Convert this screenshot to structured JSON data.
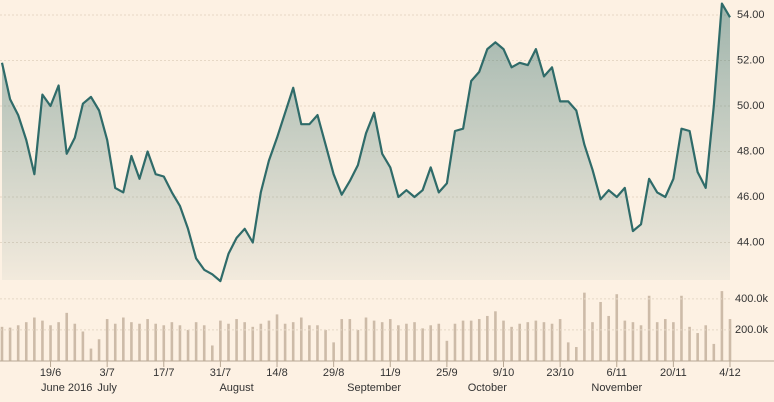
{
  "chart_data": [
    {
      "type": "line",
      "color": "#2f6b69",
      "grid": true,
      "categories": [
        null,
        null,
        null,
        null,
        null,
        null,
        "19/6",
        null,
        null,
        null,
        null,
        null,
        null,
        "3/7",
        null,
        null,
        null,
        null,
        null,
        null,
        "17/7",
        null,
        null,
        null,
        null,
        null,
        null,
        "31/7",
        null,
        null,
        null,
        null,
        null,
        null,
        "14/8",
        null,
        null,
        null,
        null,
        null,
        null,
        "29/8",
        null,
        null,
        null,
        null,
        null,
        null,
        "11/9",
        null,
        null,
        null,
        null,
        null,
        null,
        "25/9",
        null,
        null,
        null,
        null,
        null,
        null,
        "9/10",
        null,
        null,
        null,
        null,
        null,
        null,
        "23/10",
        null,
        null,
        null,
        null,
        null,
        null,
        "6/11",
        null,
        null,
        null,
        null,
        null,
        null,
        "20/11",
        null,
        null,
        null,
        null,
        null,
        null,
        "4/12"
      ],
      "months": [
        null,
        null,
        null,
        null,
        null,
        null,
        null,
        null,
        "June 2016",
        null,
        null,
        null,
        null,
        "July",
        null,
        null,
        null,
        null,
        null,
        null,
        null,
        null,
        null,
        null,
        null,
        null,
        null,
        null,
        null,
        "August",
        null,
        null,
        null,
        null,
        null,
        null,
        null,
        null,
        null,
        null,
        null,
        null,
        null,
        null,
        null,
        null,
        "September",
        null,
        null,
        null,
        null,
        null,
        null,
        null,
        null,
        null,
        null,
        null,
        null,
        null,
        "October",
        null,
        null,
        null,
        null,
        null,
        null,
        null,
        null,
        null,
        null,
        null,
        null,
        null,
        null,
        null,
        "November",
        null,
        null,
        null,
        null,
        null,
        null,
        null,
        null,
        null,
        null,
        null,
        null,
        null,
        null
      ],
      "values": [
        51.9,
        50.3,
        49.6,
        48.5,
        47.0,
        50.5,
        50.0,
        50.9,
        47.9,
        48.6,
        50.1,
        50.4,
        49.8,
        48.5,
        46.4,
        46.2,
        47.8,
        46.8,
        48.0,
        47.0,
        46.9,
        46.2,
        45.6,
        44.6,
        43.3,
        42.8,
        42.6,
        42.3,
        43.5,
        44.2,
        44.6,
        44.0,
        46.2,
        47.6,
        48.6,
        49.7,
        50.8,
        49.2,
        49.2,
        49.6,
        48.3,
        47.0,
        46.1,
        46.7,
        47.4,
        48.8,
        49.7,
        47.9,
        47.3,
        46.0,
        46.3,
        46.0,
        46.3,
        47.3,
        46.2,
        46.6,
        48.9,
        49.0,
        51.1,
        51.5,
        52.5,
        52.8,
        52.5,
        51.7,
        51.9,
        51.8,
        52.5,
        51.3,
        51.7,
        50.2,
        50.2,
        49.8,
        48.3,
        47.2,
        45.9,
        46.3,
        46.0,
        46.4,
        44.5,
        44.8,
        46.8,
        46.2,
        46.0,
        46.8,
        49.0,
        48.9,
        47.1,
        46.4,
        50.0,
        54.5,
        53.9
      ],
      "ylim": [
        42.35,
        54.66
      ],
      "yticks": [
        {
          "value": 44,
          "label": "44.00"
        },
        {
          "value": 46,
          "label": "46.00"
        },
        {
          "value": 48,
          "label": "48.00"
        },
        {
          "value": 50,
          "label": "50.00"
        },
        {
          "value": 52,
          "label": "52.00"
        },
        {
          "value": 54,
          "label": "54.00"
        }
      ]
    },
    {
      "type": "bar",
      "color": "#cdbba8",
      "values": [
        220000,
        215000,
        230000,
        250000,
        280000,
        260000,
        230000,
        250000,
        310000,
        240000,
        190000,
        80000,
        140000,
        270000,
        240000,
        280000,
        250000,
        240000,
        270000,
        240000,
        230000,
        250000,
        230000,
        200000,
        250000,
        230000,
        100000,
        260000,
        240000,
        270000,
        250000,
        220000,
        240000,
        260000,
        300000,
        240000,
        250000,
        280000,
        230000,
        230000,
        200000,
        120000,
        270000,
        270000,
        200000,
        280000,
        260000,
        250000,
        270000,
        230000,
        240000,
        250000,
        210000,
        230000,
        240000,
        130000,
        240000,
        260000,
        260000,
        270000,
        290000,
        320000,
        260000,
        220000,
        240000,
        250000,
        260000,
        250000,
        240000,
        270000,
        120000,
        90000,
        440000,
        250000,
        380000,
        290000,
        430000,
        260000,
        250000,
        230000,
        420000,
        250000,
        270000,
        250000,
        420000,
        220000,
        180000,
        230000,
        110000,
        450000,
        270000
      ],
      "ylim": [
        0,
        470000
      ],
      "yticks": [
        {
          "value": 200000,
          "label": "200.0k"
        },
        {
          "value": 400000,
          "label": "400.0k"
        }
      ]
    }
  ]
}
